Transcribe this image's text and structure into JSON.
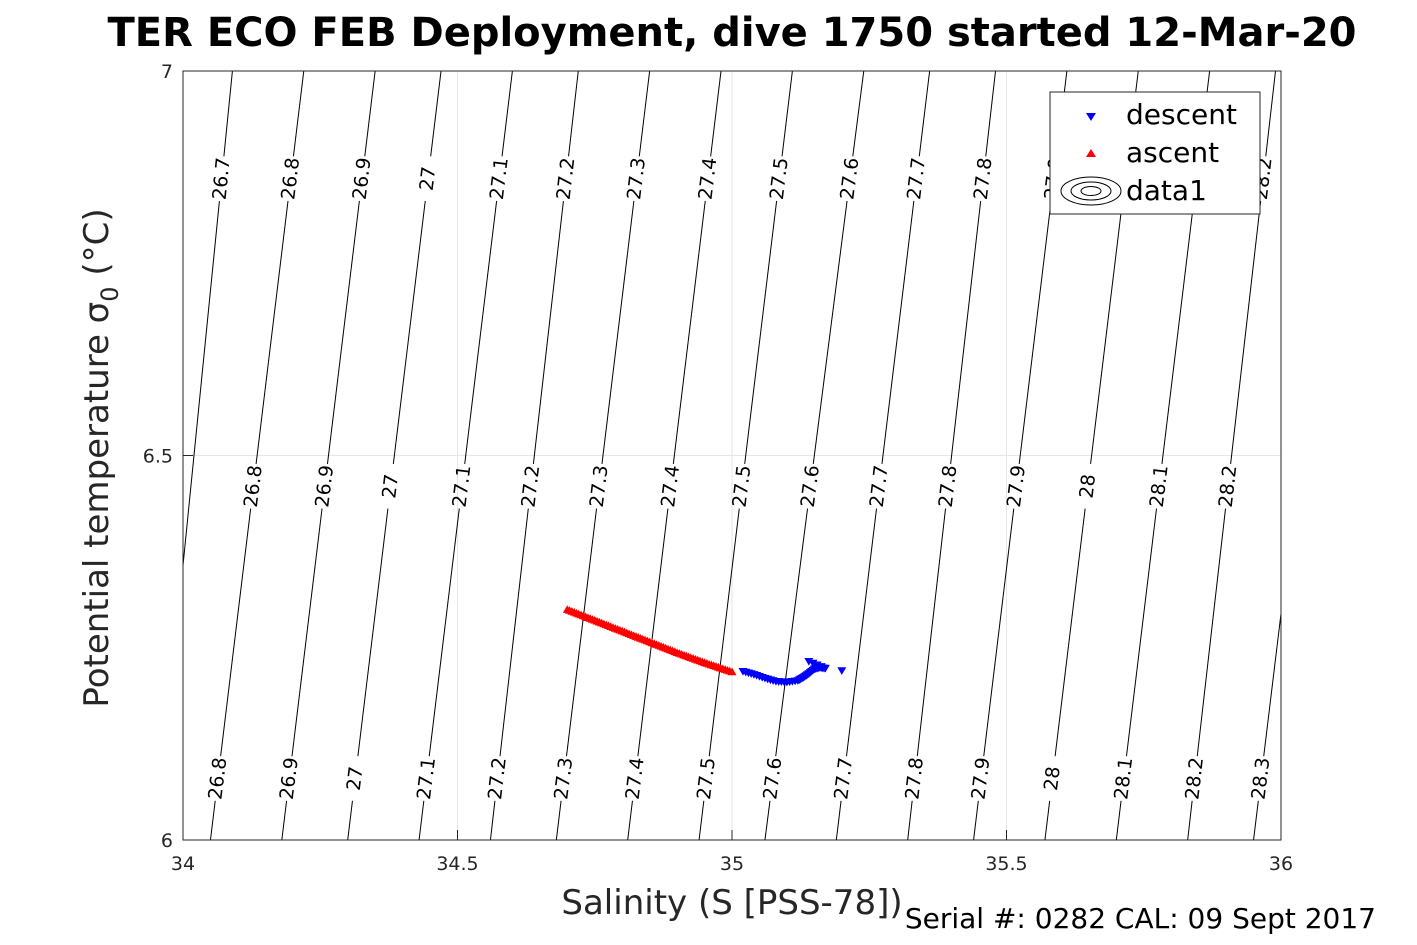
{
  "chart_data": {
    "type": "scatter",
    "title": "TER ECO FEB Deployment, dive 1750 started 12-Mar-20",
    "xlabel": "Salinity (S [PSS-78])",
    "ylabel": "Potential temperature σ",
    "ylabel_sub": "0",
    "ylabel_unit": " (°C)",
    "xlim": [
      34,
      36
    ],
    "ylim": [
      6,
      7
    ],
    "xticks": [
      "34",
      "34.5",
      "35",
      "35.5",
      "36"
    ],
    "yticks": [
      "6",
      "6.5",
      "7"
    ],
    "grid": true,
    "legend": {
      "placement": "top-right",
      "entries": [
        "descent",
        "ascent",
        "data1"
      ]
    },
    "series": [
      {
        "name": "descent",
        "marker": "triangle-down",
        "color": "#0000ff",
        "x": [
          35.02,
          35.04,
          35.06,
          35.08,
          35.1,
          35.12,
          35.13,
          35.14,
          35.15,
          35.16,
          35.17,
          35.14,
          35.2
        ],
        "y": [
          6.219,
          6.215,
          6.21,
          6.206,
          6.205,
          6.207,
          6.211,
          6.216,
          6.222,
          6.224,
          6.223,
          6.232,
          6.22
        ]
      },
      {
        "name": "ascent",
        "marker": "triangle-up",
        "color": "#ff0000",
        "x": [
          34.7,
          34.75,
          34.8,
          34.85,
          34.9,
          34.95,
          35.0
        ],
        "y": [
          6.3,
          6.286,
          6.272,
          6.258,
          6.244,
          6.231,
          6.219
        ]
      }
    ],
    "contours": {
      "name": "data1",
      "color": "#000000",
      "lines": [
        {
          "top_x": 34.09,
          "bottom_x": 33.95,
          "top_label": "26.7",
          "mid_label": "",
          "bottom_label": ""
        },
        {
          "top_x": 34.22,
          "bottom_x": 34.05,
          "top_label": "26.8",
          "mid_label": "26.8",
          "bottom_label": "26.8"
        },
        {
          "top_x": 34.35,
          "bottom_x": 34.18,
          "top_label": "26.9",
          "mid_label": "26.9",
          "bottom_label": "26.9"
        },
        {
          "top_x": 34.47,
          "bottom_x": 34.3,
          "top_label": "27",
          "mid_label": "27",
          "bottom_label": "27"
        },
        {
          "top_x": 34.6,
          "bottom_x": 34.43,
          "top_label": "27.1",
          "mid_label": "27.1",
          "bottom_label": "27.1"
        },
        {
          "top_x": 34.72,
          "bottom_x": 34.56,
          "top_label": "27.2",
          "mid_label": "27.2",
          "bottom_label": "27.2"
        },
        {
          "top_x": 34.85,
          "bottom_x": 34.68,
          "top_label": "27.3",
          "mid_label": "27.3",
          "bottom_label": "27.3"
        },
        {
          "top_x": 34.98,
          "bottom_x": 34.81,
          "top_label": "27.4",
          "mid_label": "27.4",
          "bottom_label": "27.4"
        },
        {
          "top_x": 35.11,
          "bottom_x": 34.94,
          "top_label": "27.5",
          "mid_label": "27.5",
          "bottom_label": "27.5"
        },
        {
          "top_x": 35.24,
          "bottom_x": 35.06,
          "top_label": "27.6",
          "mid_label": "27.6",
          "bottom_label": "27.6"
        },
        {
          "top_x": 35.36,
          "bottom_x": 35.19,
          "top_label": "27.7",
          "mid_label": "27.7",
          "bottom_label": "27.7"
        },
        {
          "top_x": 35.48,
          "bottom_x": 35.32,
          "top_label": "27.8",
          "mid_label": "27.8",
          "bottom_label": "27.8"
        },
        {
          "top_x": 35.61,
          "bottom_x": 35.44,
          "top_label": "27.9",
          "mid_label": "27.9",
          "bottom_label": "27.9"
        },
        {
          "top_x": 35.74,
          "bottom_x": 35.57,
          "top_label": "",
          "mid_label": "28",
          "bottom_label": "28"
        },
        {
          "top_x": 35.87,
          "bottom_x": 35.7,
          "top_label": "",
          "mid_label": "28.1",
          "bottom_label": "28.1"
        },
        {
          "top_x": 35.99,
          "bottom_x": 35.83,
          "top_label": "28.2",
          "mid_label": "28.2",
          "bottom_label": "28.2"
        },
        {
          "top_x": 36.12,
          "bottom_x": 35.95,
          "top_label": "",
          "mid_label": "",
          "bottom_label": "28.3"
        }
      ]
    }
  },
  "footer": "Serial #: 0282  CAL: 09 Sept 2017"
}
